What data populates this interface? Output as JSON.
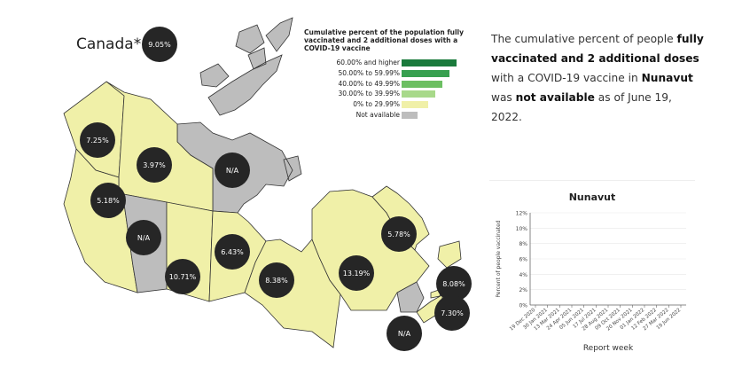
{
  "map": {
    "country_label": "Canada*",
    "country_value": "9.05%",
    "legend": {
      "title": "Cumulative percent of the population fully vaccinated and 2 additional doses with a COVID-19 vaccine",
      "items": [
        {
          "label": "60.00% and higher",
          "color": "#1a7a3c"
        },
        {
          "label": "50.00% to 59.99%",
          "color": "#37a050"
        },
        {
          "label": "40.00% to 49.99%",
          "color": "#6cbf62"
        },
        {
          "label": "30.00% to 39.99%",
          "color": "#a8d98a"
        },
        {
          "label": "0% to 29.99%",
          "color": "#f0f0a8"
        },
        {
          "label": "Not available",
          "color": "#bdbdbd"
        }
      ]
    },
    "regions": [
      {
        "name": "British Columbia",
        "value": "5.18%",
        "color": "#f0f0a8"
      },
      {
        "name": "Yukon",
        "value": "7.25%",
        "color": "#f0f0a8"
      },
      {
        "name": "Northwest Territories",
        "value": "3.97%",
        "color": "#f0f0a8"
      },
      {
        "name": "Nunavut",
        "value": "N/A",
        "color": "#bdbdbd"
      },
      {
        "name": "Alberta",
        "value": "N/A",
        "color": "#bdbdbd"
      },
      {
        "name": "Saskatchewan",
        "value": "10.71%",
        "color": "#f0f0a8"
      },
      {
        "name": "Manitoba",
        "value": "6.43%",
        "color": "#f0f0a8"
      },
      {
        "name": "Ontario",
        "value": "8.38%",
        "color": "#f0f0a8"
      },
      {
        "name": "Quebec",
        "value": "13.19%",
        "color": "#f0f0a8"
      },
      {
        "name": "Newfoundland and Labrador",
        "value": "5.78%",
        "color": "#f0f0a8"
      },
      {
        "name": "Prince Edward Island",
        "value": "8.08%",
        "color": "#f0f0a8"
      },
      {
        "name": "Nova Scotia",
        "value": "7.30%",
        "color": "#f0f0a8"
      },
      {
        "name": "New Brunswick",
        "value": "N/A",
        "color": "#bdbdbd"
      }
    ]
  },
  "info": {
    "part1": "The cumulative percent of people ",
    "bold1": "fully vaccinated and 2 additional doses",
    "part2": " with a COVID-19 vaccine in ",
    "bold2": "Nunavut",
    "part3": " was ",
    "bold3": "not available",
    "part4": " as of June 19, 2022."
  },
  "chart_data": {
    "type": "line",
    "title": "Nunavut",
    "xlabel": "Report week",
    "ylabel": "Percent of people vaccinated",
    "x": [
      "19 Dec 2020",
      "30 Jan 2021",
      "13 Mar 2021",
      "24 Apr 2021",
      "05 Jun 2021",
      "17 Jul 2021",
      "28 Aug 2021",
      "09 Oct 2021",
      "20 Nov 2021",
      "01 Jan 2022",
      "12 Feb 2022",
      "27 Mar 2022",
      "19 Jun 2022"
    ],
    "yticks": [
      "0%",
      "2%",
      "4%",
      "6%",
      "8%",
      "10%",
      "12%"
    ],
    "ylim": [
      0,
      12
    ],
    "series": [],
    "grid": true
  }
}
